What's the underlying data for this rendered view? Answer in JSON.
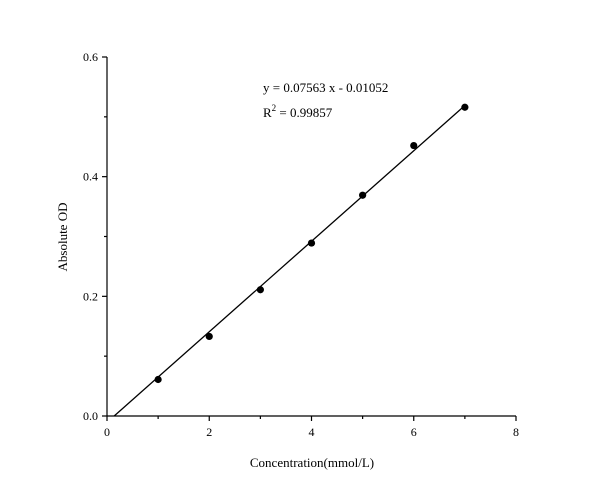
{
  "chart_data": {
    "type": "scatter",
    "title": "",
    "xlabel": "Concentration(mmol/L)",
    "ylabel": "Absolute OD",
    "xlim": [
      0,
      8
    ],
    "ylim": [
      0,
      0.6
    ],
    "xticks": [
      0,
      2,
      4,
      6,
      8
    ],
    "xtick_labels": [
      "0",
      "2",
      "4",
      "6",
      "8"
    ],
    "yticks": [
      0,
      0.2,
      0.4,
      0.6
    ],
    "ytick_labels": [
      "0.0",
      "0.2",
      "0.4",
      "0.6"
    ],
    "grid": false,
    "legend": "none",
    "series": [
      {
        "x": [
          1,
          2,
          3,
          4,
          5,
          6,
          7
        ],
        "y": [
          0.061,
          0.133,
          0.211,
          0.289,
          0.369,
          0.452,
          0.516
        ],
        "marker": "circle",
        "color": "#000000"
      }
    ],
    "fit": {
      "slope": 0.07563,
      "intercept": -0.01052,
      "x_range": [
        0.14,
        7
      ]
    },
    "annotations": {
      "equation": "y = 0.07563 x - 0.01052",
      "r2_prefix": "R",
      "r2_sup": "2",
      "r2_value": " = 0.99857"
    }
  }
}
